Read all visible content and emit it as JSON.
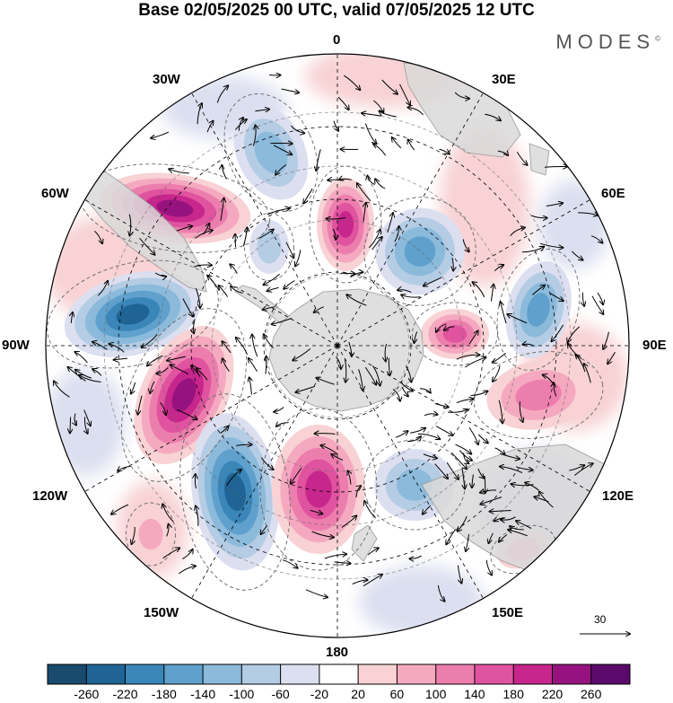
{
  "title": "Base 02/05/2025 00 UTC, valid 07/05/2025 12 UTC",
  "brand": "MODES",
  "brand_mark": "©",
  "longitude_labels": {
    "lon_0": "0",
    "lon_30e": "30E",
    "lon_60e": "60E",
    "lon_90e": "90E",
    "lon_120e": "120E",
    "lon_150e": "150E",
    "lon_180": "180",
    "lon_150w": "150W",
    "lon_120w": "120W",
    "lon_90w": "90W",
    "lon_60w": "60W",
    "lon_30w": "30W"
  },
  "reference_vector_label": "30",
  "colorbar": {
    "ticks": [
      "-260",
      "-220",
      "-180",
      "-140",
      "-100",
      "-60",
      "-20",
      "20",
      "60",
      "100",
      "140",
      "180",
      "220",
      "260"
    ],
    "colors": [
      "#1a4a6e",
      "#1f6494",
      "#3a86b8",
      "#5fa0cc",
      "#8bbadb",
      "#b4cce4",
      "#dcdff0",
      "#ffffff",
      "#f8d2d4",
      "#f5a9c0",
      "#ec7eae",
      "#e0539f",
      "#c7268c",
      "#96137f",
      "#5b0a6b"
    ]
  },
  "map_layers": {
    "field": "geopotential height anomaly",
    "continents_color": "#d9d9d9",
    "grid_color": "#000000"
  }
}
